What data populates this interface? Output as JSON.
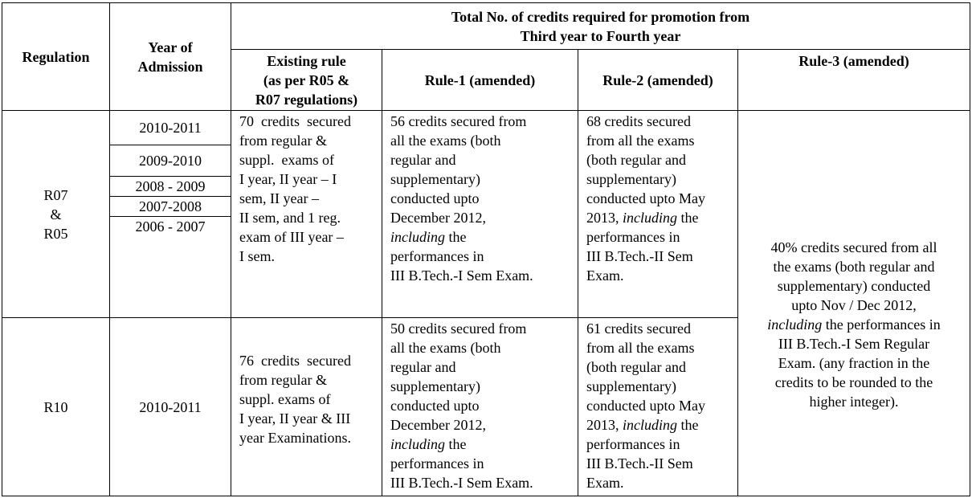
{
  "header": {
    "regulation": "Regulation",
    "year_of_admission_l1": "Year of",
    "year_of_admission_l2": "Admission",
    "total_l1": "Total No. of credits required for promotion from",
    "total_l2": "Third year to Fourth year",
    "existing_l1": "Existing rule",
    "existing_l2": "(as per R05 &",
    "existing_l3": "R07 regulations)",
    "rule1": "Rule-1 (amended)",
    "rule2": "Rule-2 (amended)",
    "rule3": "Rule-3 (amended)"
  },
  "row1": {
    "regulation_l1": "R07",
    "regulation_l2": "&",
    "regulation_l3": "R05",
    "years": [
      "2010-2011",
      "2009-2010",
      "2008 - 2009",
      "2007-2008",
      "2006 - 2007"
    ],
    "existing_lines": [
      "70  credits  secured",
      "from regular &",
      "suppl.  exams of",
      "I year, II year – I",
      "sem, II year –",
      "II sem, and 1 reg.",
      "exam of III year –",
      "I sem."
    ],
    "rule1_lines": [
      "56 credits secured from",
      "all the exams (both",
      "regular and",
      "supplementary)",
      "conducted upto",
      "December 2012,"
    ],
    "rule1_em": "including",
    "rule1_after_em": " the",
    "rule1_tail": [
      "performances in",
      "III B.Tech.-I Sem Exam."
    ],
    "rule2_lines": [
      "68 credits secured",
      "from all the exams",
      "(both regular and",
      "supplementary)",
      "conducted upto May"
    ],
    "rule2_pre_em": "2013, ",
    "rule2_em": "including",
    "rule2_after_em": " the",
    "rule2_tail": [
      "performances in",
      "III B.Tech.-II Sem",
      "Exam."
    ]
  },
  "row2": {
    "regulation": "R10",
    "year": "2010-2011",
    "existing_lines": [
      "76  credits  secured",
      "from regular &",
      "suppl. exams of",
      "I year, II year & III",
      "year Examinations."
    ],
    "rule1_lines": [
      "50 credits secured from",
      "all the exams (both",
      "regular and",
      "supplementary)",
      "conducted upto",
      "December 2012,"
    ],
    "rule1_em": "including",
    "rule1_after_em": " the",
    "rule1_tail": [
      "performances in",
      "III B.Tech.-I Sem Exam."
    ],
    "rule2_lines": [
      "61 credits secured",
      "from all the exams",
      "(both regular and",
      "supplementary)",
      "conducted upto May"
    ],
    "rule2_pre_em": "2013, ",
    "rule2_em": "including",
    "rule2_after_em": " the",
    "rule2_tail": [
      "performances in",
      "III B.Tech.-II Sem",
      "Exam."
    ]
  },
  "rule3": {
    "lines_before": [
      "40% credits secured from all",
      "the exams (both regular and",
      "supplementary) conducted",
      "upto Nov / Dec 2012,"
    ],
    "em": "including",
    "after_em": " the performances in",
    "lines_after": [
      "III B.Tech.-I Sem Regular",
      "Exam. (any fraction in the",
      "credits to be rounded to the",
      "higher integer)."
    ]
  }
}
